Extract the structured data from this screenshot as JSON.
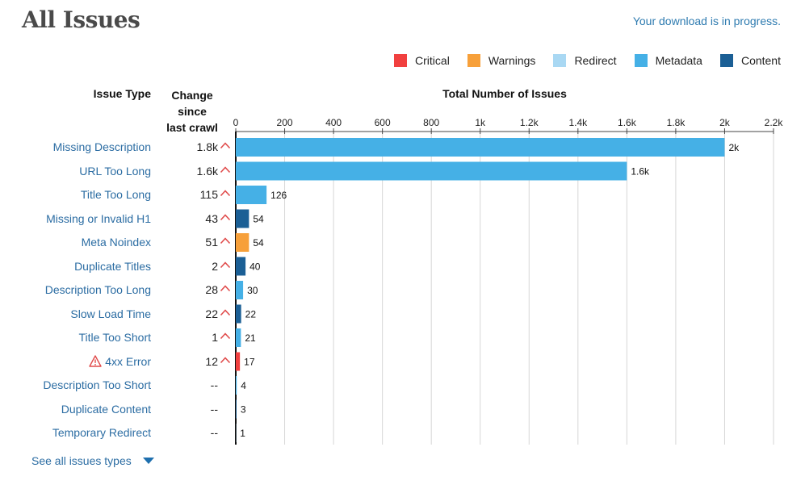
{
  "page": {
    "title": "All Issues",
    "download_status": "Your download is in progress.",
    "see_all_label": "See all issues types"
  },
  "legend": [
    {
      "label": "Critical",
      "color": "#f1403f"
    },
    {
      "label": "Warnings",
      "color": "#f7a03a"
    },
    {
      "label": "Redirect",
      "color": "#a9d8f3"
    },
    {
      "label": "Metadata",
      "color": "#45b0e6"
    },
    {
      "label": "Content",
      "color": "#1b5f95"
    }
  ],
  "headers": {
    "issue_type": "Issue Type",
    "change_line1": "Change since",
    "change_line2": "last crawl",
    "total": "Total Number of Issues"
  },
  "chart_data": {
    "type": "bar",
    "orientation": "horizontal",
    "xlabel": "Total Number of Issues",
    "xlim": [
      0,
      2200
    ],
    "x_ticks": [
      0,
      200,
      400,
      600,
      800,
      1000,
      1200,
      1400,
      1600,
      1800,
      2000,
      2200
    ],
    "x_tick_labels": [
      "0",
      "200",
      "400",
      "600",
      "800",
      "1k",
      "1.2k",
      "1.4k",
      "1.6k",
      "1.8k",
      "2k",
      "2.2k"
    ],
    "grid": true,
    "categories": [
      "Missing Description",
      "URL Too Long",
      "Title Too Long",
      "Missing or Invalid H1",
      "Meta Noindex",
      "Duplicate Titles",
      "Description Too Long",
      "Slow Load Time",
      "Title Too Short",
      "4xx Error",
      "Description Too Short",
      "Duplicate Content",
      "Temporary Redirect"
    ],
    "values": [
      2000,
      1600,
      126,
      54,
      54,
      40,
      30,
      22,
      21,
      17,
      4,
      3,
      1
    ],
    "value_labels": [
      "2k",
      "1.6k",
      "126",
      "54",
      "54",
      "40",
      "30",
      "22",
      "21",
      "17",
      "4",
      "3",
      "1"
    ],
    "bar_groups": [
      "Metadata",
      "Metadata",
      "Metadata",
      "Content",
      "Warnings",
      "Content",
      "Metadata",
      "Content",
      "Metadata",
      "Critical",
      "Metadata",
      "Content",
      "Redirect"
    ],
    "change_since_last_crawl": [
      "1.8k",
      "1.6k",
      "115",
      "43",
      "51",
      "2",
      "28",
      "22",
      "1",
      "12",
      "--",
      "--",
      "--"
    ],
    "change_increased": [
      true,
      true,
      true,
      true,
      true,
      true,
      true,
      true,
      true,
      true,
      false,
      false,
      false
    ],
    "warning_flag": [
      false,
      false,
      false,
      false,
      false,
      false,
      false,
      false,
      false,
      true,
      false,
      false,
      false
    ],
    "legend_placement": "top-right"
  }
}
